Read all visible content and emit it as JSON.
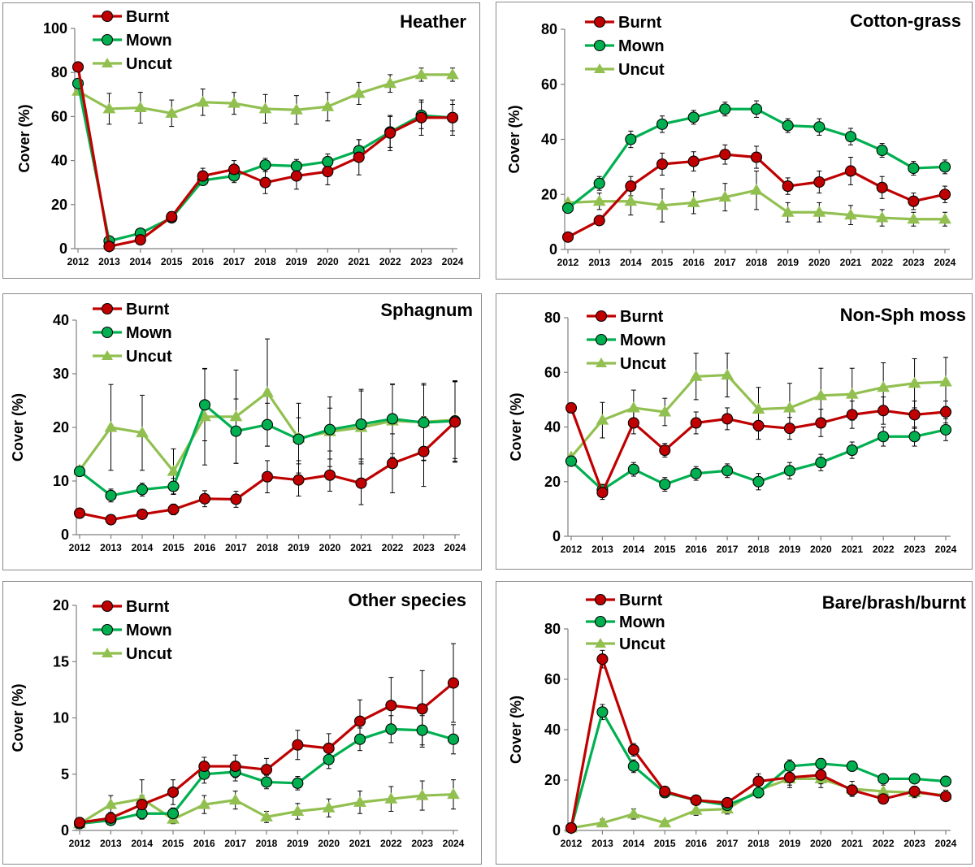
{
  "colors": {
    "burnt": "#c00000",
    "mown": "#00b050",
    "uncut": "#92c050",
    "burnt_marker": "#c00000",
    "mown_marker": "#00b050",
    "uncut_marker": "#92c050"
  },
  "legend": [
    "Burnt",
    "Mown",
    "Uncut"
  ],
  "chart_data": [
    {
      "type": "line",
      "title": "Heather",
      "ylabel": "Cover (%)",
      "xlabel": "",
      "ylim": [
        0,
        100
      ],
      "yticks": [
        0,
        20,
        40,
        60,
        80,
        100
      ],
      "x": [
        "2012",
        "2013",
        "2014",
        "2015",
        "2016",
        "2017",
        "2018",
        "2019",
        "2020",
        "2021",
        "2022",
        "2023",
        "2024"
      ],
      "series": [
        {
          "name": "Burnt",
          "values": [
            82.5,
            1,
            4,
            14.5,
            33,
            36,
            30,
            33,
            35,
            41.5,
            52.5,
            59.5,
            59.5
          ],
          "errors": [
            0,
            1,
            1.5,
            2,
            3.5,
            4,
            5,
            6,
            6,
            8,
            8,
            8,
            8
          ]
        },
        {
          "name": "Mown",
          "values": [
            75,
            3.5,
            7,
            14,
            31,
            33,
            38,
            37.5,
            39.5,
            44.5,
            53,
            60.5,
            59.5
          ],
          "errors": [
            0,
            1,
            1.5,
            2,
            2,
            3,
            3,
            3,
            3.5,
            5,
            7,
            6,
            6
          ]
        },
        {
          "name": "Uncut",
          "values": [
            71.5,
            63.5,
            64,
            61.5,
            66.5,
            66,
            63.5,
            63,
            64.5,
            70.5,
            75,
            79,
            79
          ],
          "errors": [
            0,
            7,
            7,
            6,
            6,
            5,
            6.5,
            6.5,
            6.5,
            5,
            4,
            3,
            3
          ]
        }
      ]
    },
    {
      "type": "line",
      "title": "Cotton-grass",
      "ylabel": "Cover (%)",
      "xlabel": "",
      "ylim": [
        0,
        80
      ],
      "yticks": [
        0,
        20,
        40,
        60,
        80
      ],
      "x": [
        "2012",
        "2013",
        "2014",
        "2015",
        "2016",
        "2017",
        "2018",
        "2019",
        "2020",
        "2021",
        "2022",
        "2023",
        "2024"
      ],
      "series": [
        {
          "name": "Burnt",
          "values": [
            4.5,
            10.5,
            23,
            31,
            32,
            34.5,
            33.5,
            23,
            24.5,
            28.5,
            22.5,
            17.5,
            20
          ],
          "errors": [
            0,
            1.5,
            3.5,
            4,
            3.5,
            3.5,
            4,
            3,
            4,
            5,
            4,
            3,
            3
          ]
        },
        {
          "name": "Mown",
          "values": [
            15,
            24,
            40,
            45.5,
            48,
            51,
            51,
            45,
            44.5,
            41,
            36,
            29.5,
            30
          ],
          "errors": [
            0,
            2.5,
            3,
            3,
            2.5,
            2.5,
            3,
            2.5,
            3,
            3,
            2.5,
            2.5,
            2.5
          ]
        },
        {
          "name": "Uncut",
          "values": [
            17,
            17.5,
            17.5,
            16,
            17,
            19,
            21.5,
            13.5,
            13.5,
            12.5,
            11.5,
            11,
            11
          ],
          "errors": [
            0,
            3,
            5,
            6,
            4,
            5,
            7,
            3.5,
            3.5,
            3.5,
            3,
            2.5,
            2.5
          ]
        }
      ]
    },
    {
      "type": "line",
      "title": "Sphagnum",
      "ylabel": "Cover (%)",
      "xlabel": "",
      "ylim": [
        0,
        40
      ],
      "yticks": [
        0,
        10,
        20,
        30,
        40
      ],
      "x": [
        "2012",
        "2013",
        "2014",
        "2015",
        "2016",
        "2017",
        "2018",
        "2019",
        "2020",
        "2021",
        "2022",
        "2023",
        "2024"
      ],
      "series": [
        {
          "name": "Burnt",
          "values": [
            4,
            2.8,
            3.8,
            4.7,
            6.7,
            6.6,
            10.8,
            10.2,
            11.1,
            9.6,
            13.3,
            15.5,
            21
          ],
          "errors": [
            0,
            0.5,
            0.7,
            1,
            1.5,
            1.5,
            3,
            3,
            3,
            4,
            5.5,
            6.5,
            7.5
          ]
        },
        {
          "name": "Mown",
          "values": [
            11.8,
            7.3,
            8.4,
            9,
            24.2,
            19.3,
            20.5,
            17.8,
            19.6,
            20.6,
            21.6,
            20.9,
            21.2
          ],
          "errors": [
            0,
            1.2,
            1.2,
            1.5,
            6.7,
            6,
            4,
            4,
            4,
            6.5,
            6.5,
            7,
            7.5
          ]
        },
        {
          "name": "Uncut",
          "values": [
            12,
            20,
            19,
            11.8,
            22,
            22,
            26.5,
            18,
            19.2,
            20,
            21.2,
            21,
            21.4
          ],
          "errors": [
            0,
            8,
            7,
            4.2,
            9,
            8.7,
            10,
            6.5,
            6.5,
            6.8,
            6.8,
            7.2,
            7.2
          ]
        }
      ]
    },
    {
      "type": "line",
      "title": "Non-Sph moss",
      "ylabel": "Cover (%)",
      "xlabel": "",
      "ylim": [
        0,
        80
      ],
      "yticks": [
        0,
        20,
        40,
        60,
        80
      ],
      "x": [
        "2012",
        "2013",
        "2014",
        "2015",
        "2016",
        "2017",
        "2018",
        "2019",
        "2020",
        "2021",
        "2022",
        "2023",
        "2024"
      ],
      "series": [
        {
          "name": "Burnt",
          "values": [
            47,
            16,
            41.5,
            31.5,
            41.5,
            43,
            40.5,
            39.5,
            41.5,
            44.5,
            46,
            44.5,
            45.5
          ],
          "errors": [
            0,
            2.5,
            4,
            2.5,
            4,
            4,
            5,
            4,
            5,
            5,
            5,
            5,
            4
          ]
        },
        {
          "name": "Mown",
          "values": [
            27.5,
            17,
            24.5,
            19,
            23,
            24,
            20,
            24,
            27,
            31.5,
            36.5,
            36.5,
            39
          ],
          "errors": [
            0,
            2,
            2.5,
            2.5,
            2.5,
            2.5,
            3,
            3,
            3,
            3,
            3.5,
            3.5,
            4
          ]
        },
        {
          "name": "Uncut",
          "values": [
            29,
            42.5,
            47,
            45.5,
            58.5,
            59,
            46.5,
            47,
            51.5,
            52,
            54.5,
            56,
            56.5
          ],
          "errors": [
            0,
            6.5,
            6.5,
            5,
            8.5,
            8,
            8,
            9,
            10,
            9.5,
            9,
            9,
            9
          ]
        }
      ]
    },
    {
      "type": "line",
      "title": "Other species",
      "ylabel": "Cover (%)",
      "xlabel": "",
      "ylim": [
        0,
        20
      ],
      "yticks": [
        0,
        5,
        10,
        15,
        20
      ],
      "x": [
        "2012",
        "2013",
        "2014",
        "2015",
        "2016",
        "2017",
        "2018",
        "2019",
        "2020",
        "2021",
        "2022",
        "2023",
        "2024"
      ],
      "series": [
        {
          "name": "Burnt",
          "values": [
            0.7,
            1.1,
            2.3,
            3.4,
            5.7,
            5.7,
            5.4,
            7.6,
            7.3,
            9.7,
            11.1,
            10.8,
            13.1
          ],
          "errors": [
            0,
            0.5,
            0.8,
            1.1,
            0.8,
            1,
            1,
            1.3,
            1.3,
            1.9,
            2.5,
            3.4,
            3.5
          ]
        },
        {
          "name": "Mown",
          "values": [
            0.6,
            0.9,
            1.5,
            1.5,
            5,
            5.2,
            4.3,
            4.2,
            6.3,
            8.1,
            9,
            8.9,
            8.1
          ],
          "errors": [
            0,
            0.3,
            0.5,
            0.5,
            0.8,
            0.8,
            0.6,
            0.6,
            0.8,
            1,
            1.2,
            1.3,
            1.3
          ]
        },
        {
          "name": "Uncut",
          "values": [
            0.6,
            2.3,
            2.8,
            1,
            2.3,
            2.7,
            1.2,
            1.7,
            2,
            2.5,
            2.8,
            3.1,
            3.2
          ],
          "errors": [
            0,
            0.8,
            1.7,
            0.4,
            0.8,
            0.8,
            0.5,
            0.7,
            0.8,
            1,
            1.1,
            1.3,
            1.3
          ]
        }
      ]
    },
    {
      "type": "line",
      "title": "Bare/brash/burnt",
      "ylabel": "Cover (%)",
      "xlabel": "",
      "ylim": [
        0,
        80
      ],
      "yticks": [
        0,
        20,
        40,
        60,
        80
      ],
      "x": [
        "2012",
        "2013",
        "2014",
        "2015",
        "2016",
        "2017",
        "2018",
        "2019",
        "2020",
        "2021",
        "2022",
        "2023",
        "2024"
      ],
      "series": [
        {
          "name": "Burnt",
          "values": [
            1,
            68,
            32,
            15.5,
            12,
            11,
            19.5,
            21,
            22,
            16,
            12.5,
            15.5,
            13.5
          ],
          "errors": [
            0,
            3.5,
            2.5,
            1.5,
            1.5,
            1.5,
            3,
            3,
            3.5,
            2,
            1.5,
            2,
            1.5
          ]
        },
        {
          "name": "Mown",
          "values": [
            1,
            47,
            25.5,
            15,
            12,
            10,
            15,
            25.5,
            26.5,
            25.5,
            20.5,
            20.5,
            19.5
          ],
          "errors": [
            0,
            3,
            2.5,
            1.5,
            1.5,
            1.5,
            2,
            2.5,
            2,
            2,
            1.5,
            1.5,
            1.5
          ]
        },
        {
          "name": "Uncut",
          "values": [
            1,
            3,
            6.5,
            3,
            8,
            8.5,
            16,
            20.5,
            20.5,
            16.5,
            15.5,
            15,
            14
          ],
          "errors": [
            0,
            1.5,
            2,
            1,
            2,
            2,
            3,
            3.5,
            3.5,
            3,
            2.5,
            2,
            2
          ]
        }
      ]
    }
  ]
}
